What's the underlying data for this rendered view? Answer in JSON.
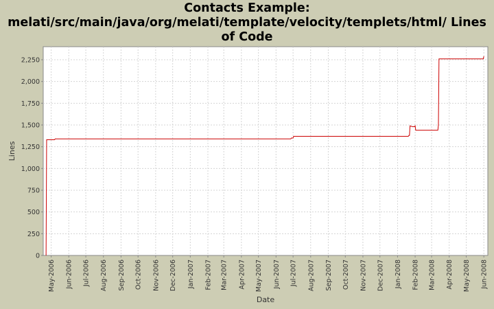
{
  "chart_data": {
    "type": "line",
    "title_lines": [
      "Contacts Example:",
      "melati/src/main/java/org/melati/template/velocity/templets/html/ Lines",
      "of Code"
    ],
    "xlabel": "Date",
    "ylabel": "Lines",
    "ylim": [
      0,
      2400
    ],
    "y_ticks": [
      0,
      250,
      500,
      750,
      1000,
      1250,
      1500,
      1750,
      2000,
      2250
    ],
    "y_tick_labels": [
      "0",
      "250",
      "500",
      "750",
      "1,000",
      "1,250",
      "1,500",
      "1,750",
      "2,000",
      "2,250"
    ],
    "xlim": [
      "2006-04-17",
      "2008-06-08"
    ],
    "x_ticks": [
      "2006-05-01",
      "2006-06-01",
      "2006-07-01",
      "2006-08-01",
      "2006-09-01",
      "2006-10-01",
      "2006-11-01",
      "2006-12-01",
      "2007-01-01",
      "2007-02-01",
      "2007-03-01",
      "2007-04-01",
      "2007-05-01",
      "2007-06-01",
      "2007-07-01",
      "2007-08-01",
      "2007-09-01",
      "2007-10-01",
      "2007-11-01",
      "2007-12-01",
      "2008-01-01",
      "2008-02-01",
      "2008-03-01",
      "2008-04-01",
      "2008-05-01",
      "2008-06-01"
    ],
    "x_tick_labels": [
      "May-2006",
      "Jun-2006",
      "Jul-2006",
      "Aug-2006",
      "Sep-2006",
      "Oct-2006",
      "Nov-2006",
      "Dec-2006",
      "Jan-2007",
      "Feb-2007",
      "Mar-2007",
      "Apr-2007",
      "May-2007",
      "Jun-2007",
      "Jul-2007",
      "Aug-2007",
      "Sep-2007",
      "Oct-2007",
      "Nov-2007",
      "Dec-2007",
      "Jan-2008",
      "Feb-2008",
      "Mar-2008",
      "Apr-2008",
      "May-2008",
      "Jun-2008"
    ],
    "grid": true,
    "line_color": "#cc0000",
    "plot_background": "#ffffff",
    "series": [
      {
        "points": [
          [
            "2006-04-22",
            0
          ],
          [
            "2006-04-23",
            1330
          ],
          [
            "2006-05-07",
            1330
          ],
          [
            "2006-05-08",
            1340
          ],
          [
            "2007-06-27",
            1340
          ],
          [
            "2007-06-28",
            1350
          ],
          [
            "2007-07-01",
            1350
          ],
          [
            "2007-07-02",
            1370
          ],
          [
            "2008-01-20",
            1370
          ],
          [
            "2008-01-21",
            1380
          ],
          [
            "2008-01-22",
            1380
          ],
          [
            "2008-01-23",
            1490
          ],
          [
            "2008-01-27",
            1480
          ],
          [
            "2008-01-31",
            1480
          ],
          [
            "2008-02-01",
            1490
          ],
          [
            "2008-02-02",
            1440
          ],
          [
            "2008-03-12",
            1440
          ],
          [
            "2008-03-13",
            1500
          ],
          [
            "2008-03-14",
            2260
          ],
          [
            "2008-05-31",
            2260
          ],
          [
            "2008-06-01",
            2290
          ]
        ]
      }
    ]
  }
}
